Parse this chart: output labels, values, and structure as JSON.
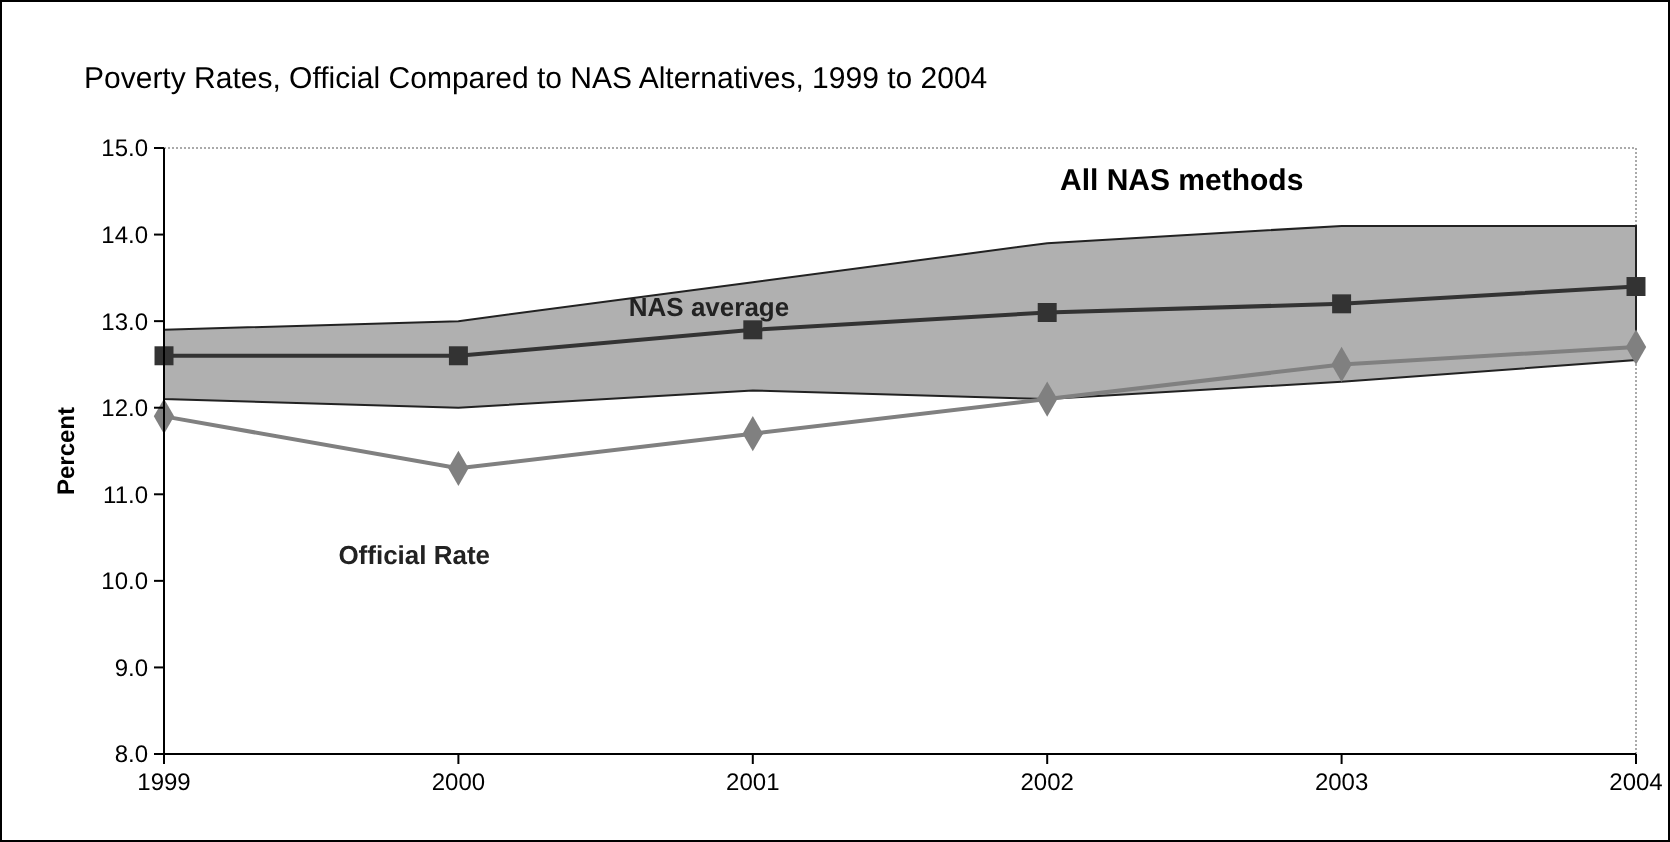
{
  "chart_data": {
    "type": "line",
    "title": "Poverty Rates, Official Compared to NAS Alternatives, 1999 to 2004",
    "ylabel": "Percent",
    "x": [
      1999,
      2000,
      2001,
      2002,
      2003,
      2004
    ],
    "xlim": [
      1999,
      2004
    ],
    "xticks": [
      1999,
      2000,
      2001,
      2002,
      2003,
      2004
    ],
    "ylim": [
      8,
      15
    ],
    "yticks": [
      {
        "value": 8,
        "label": "8.0"
      },
      {
        "value": 9,
        "label": "9.0"
      },
      {
        "value": 10,
        "label": "10.0"
      },
      {
        "value": 11,
        "label": "11.0"
      },
      {
        "value": 12,
        "label": "12.0"
      },
      {
        "value": 13,
        "label": "13.0"
      },
      {
        "value": 14,
        "label": "14.0"
      },
      {
        "value": 15,
        "label": "15.0"
      }
    ],
    "grid": false,
    "annotations": [
      "All NAS methods"
    ],
    "series": [
      {
        "name": "NAS average",
        "color": "#333333",
        "marker": "square",
        "values": [
          12.6,
          12.6,
          12.9,
          13.1,
          13.2,
          13.4
        ],
        "lower": [
          12.1,
          12.0,
          12.2,
          12.1,
          12.3,
          12.55
        ],
        "upper": [
          12.9,
          13.0,
          13.45,
          13.9,
          14.1,
          14.1
        ]
      },
      {
        "name": "Official Rate",
        "color": "#808080",
        "marker": "diamond",
        "values": [
          11.9,
          11.3,
          11.7,
          12.1,
          12.5,
          12.7
        ]
      }
    ]
  }
}
